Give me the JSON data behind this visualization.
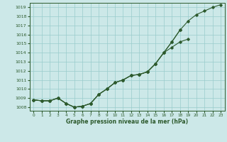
{
  "xlabel": "Graphe pression niveau de la mer (hPa)",
  "bg_color": "#cce8e8",
  "grid_color": "#99cccc",
  "line_color": "#2d5a2d",
  "x": [
    0,
    1,
    2,
    3,
    4,
    5,
    6,
    7,
    8,
    9,
    10,
    11,
    12,
    13,
    14,
    15,
    16,
    17,
    18,
    19,
    20,
    21,
    22,
    23
  ],
  "line1": [
    1008.8,
    1008.7,
    1008.7,
    1009.0,
    1008.4,
    1008.0,
    1008.1,
    1008.4,
    1009.4,
    1010.0,
    1010.7,
    1011.0,
    1011.5,
    1011.6,
    1011.9,
    1012.8,
    1014.0,
    1015.2,
    1016.5,
    1017.5,
    1018.2,
    1018.6,
    1019.0,
    1019.3
  ],
  "line2": [
    1008.8,
    1008.7,
    1008.7,
    1009.0,
    1008.4,
    1008.0,
    1008.1,
    1008.4,
    1009.4,
    1010.0,
    1010.7,
    1011.0,
    1011.5,
    1011.6,
    1011.9,
    1012.8,
    1014.0,
    1015.2,
    1016.5,
    null,
    null,
    null,
    null,
    null
  ],
  "line3": [
    1008.8,
    1008.7,
    1008.7,
    1009.0,
    1008.4,
    1008.0,
    1008.1,
    1008.4,
    1009.4,
    1010.0,
    1010.7,
    1011.0,
    1011.5,
    1011.6,
    1011.9,
    1012.8,
    1014.0,
    1014.6,
    1015.2,
    1015.5,
    null,
    null,
    null,
    null
  ],
  "ylim_min": 1007.6,
  "ylim_max": 1019.5,
  "yticks": [
    1008,
    1009,
    1010,
    1011,
    1012,
    1013,
    1014,
    1015,
    1016,
    1017,
    1018,
    1019
  ],
  "xticks": [
    0,
    1,
    2,
    3,
    4,
    5,
    6,
    7,
    8,
    9,
    10,
    11,
    12,
    13,
    14,
    15,
    16,
    17,
    18,
    19,
    20,
    21,
    22,
    23
  ],
  "figwidth": 3.2,
  "figheight": 2.0,
  "dpi": 100
}
